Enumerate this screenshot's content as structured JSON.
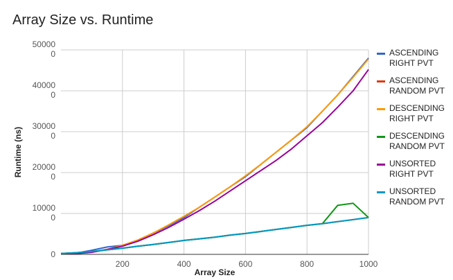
{
  "chart_data": {
    "type": "line",
    "title": "Array Size vs. Runtime",
    "xlabel": "Array Size",
    "ylabel": "Runtime (ns)",
    "xlim": [
      0,
      1000
    ],
    "ylim": [
      0,
      500000
    ],
    "x_ticks": [
      "200",
      "400",
      "600",
      "800",
      "1000"
    ],
    "y_ticks": [
      {
        "value": 0,
        "lines": [
          "0"
        ]
      },
      {
        "value": 100000,
        "lines": [
          "10000",
          "0"
        ]
      },
      {
        "value": 200000,
        "lines": [
          "20000",
          "0"
        ]
      },
      {
        "value": 300000,
        "lines": [
          "30000",
          "0"
        ]
      },
      {
        "value": 400000,
        "lines": [
          "40000",
          "0"
        ]
      },
      {
        "value": 500000,
        "lines": [
          "50000",
          "0"
        ]
      }
    ],
    "grid": true,
    "legend_position": "right",
    "x": [
      0,
      50,
      100,
      150,
      200,
      250,
      300,
      350,
      400,
      450,
      500,
      550,
      600,
      650,
      700,
      750,
      800,
      850,
      900,
      950,
      1000
    ],
    "series": [
      {
        "name": "ASCENDING RIGHT PVT",
        "color": "#3366cc",
        "values": [
          2000,
          3000,
          10000,
          18000,
          22000,
          35000,
          52000,
          70000,
          90000,
          115000,
          140000,
          165000,
          190000,
          220000,
          250000,
          280000,
          310000,
          350000,
          390000,
          435000,
          480000
        ]
      },
      {
        "name": "ASCENDING RANDOM PVT",
        "color": "#dc3912",
        "values": [
          2000,
          4000,
          7000,
          11000,
          15000,
          20000,
          24000,
          29000,
          34000,
          38000,
          42000,
          47000,
          51000,
          56000,
          61000,
          66000,
          71000,
          75000,
          80000,
          85000,
          90000
        ]
      },
      {
        "name": "DESCENDING RIGHT PVT",
        "color": "#ff9900",
        "values": [
          1000,
          2000,
          6000,
          12000,
          22000,
          35000,
          52000,
          72000,
          93000,
          115000,
          140000,
          165000,
          192000,
          220000,
          250000,
          280000,
          312000,
          350000,
          390000,
          433000,
          478000
        ]
      },
      {
        "name": "DESCENDING RANDOM PVT",
        "color": "#109618",
        "values": [
          2000,
          4000,
          7000,
          11000,
          15000,
          20000,
          24000,
          29000,
          34000,
          38000,
          42000,
          47000,
          51000,
          56000,
          61000,
          66000,
          71000,
          75000,
          120000,
          125000,
          90000
        ]
      },
      {
        "name": "UNSORTED RIGHT PVT",
        "color": "#990099",
        "values": [
          1000,
          2000,
          5000,
          12000,
          20000,
          32000,
          48000,
          66000,
          86000,
          107000,
          130000,
          155000,
          180000,
          205000,
          230000,
          258000,
          290000,
          322000,
          360000,
          400000,
          452000
        ]
      },
      {
        "name": "UNSORTED RANDOM PVT",
        "color": "#0099c6",
        "values": [
          2000,
          4000,
          7000,
          11000,
          15000,
          20000,
          24000,
          29000,
          34000,
          38000,
          42000,
          47000,
          51000,
          56000,
          61000,
          66000,
          71000,
          75000,
          80000,
          85000,
          90000
        ]
      }
    ]
  }
}
